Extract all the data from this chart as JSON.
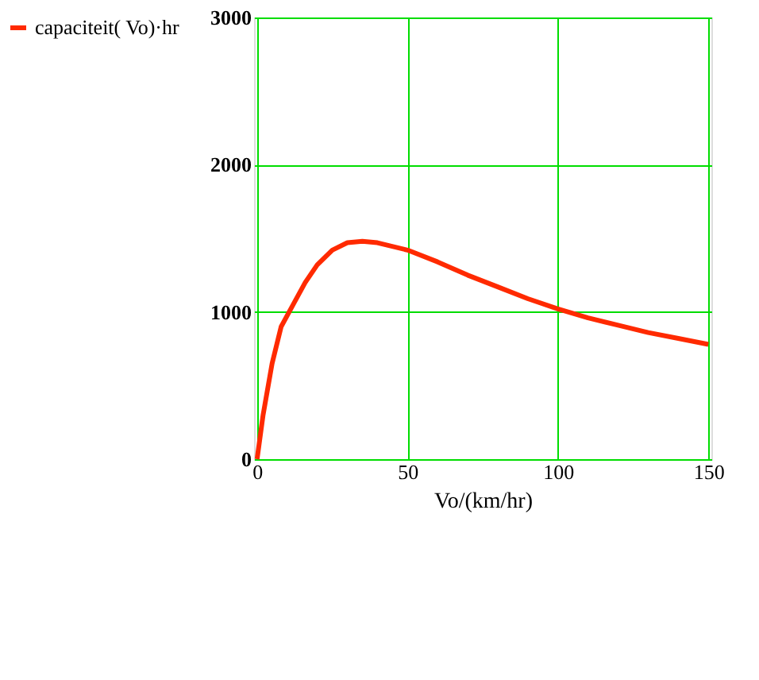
{
  "chart_data": {
    "type": "line",
    "xlabel": "Vo/(km/hr)",
    "x": [
      0,
      2,
      5,
      8,
      12,
      16,
      20,
      25,
      30,
      35,
      40,
      50,
      60,
      70,
      80,
      90,
      100,
      110,
      120,
      130,
      140,
      150
    ],
    "series": [
      {
        "name": "capaciteit( Vo)·hr",
        "color": "#ff2a00",
        "values": [
          0,
          300,
          650,
          900,
          1050,
          1200,
          1320,
          1420,
          1470,
          1480,
          1470,
          1420,
          1340,
          1250,
          1170,
          1090,
          1020,
          960,
          910,
          860,
          820,
          780
        ]
      }
    ],
    "xlim": [
      -1,
      151
    ],
    "ylim": [
      0,
      3000
    ],
    "xticks": [
      0,
      50,
      100,
      150
    ],
    "yticks": [
      0,
      1000,
      2000,
      3000
    ],
    "grid": true,
    "legend": "left",
    "marker": "none",
    "line_style": "solid"
  }
}
